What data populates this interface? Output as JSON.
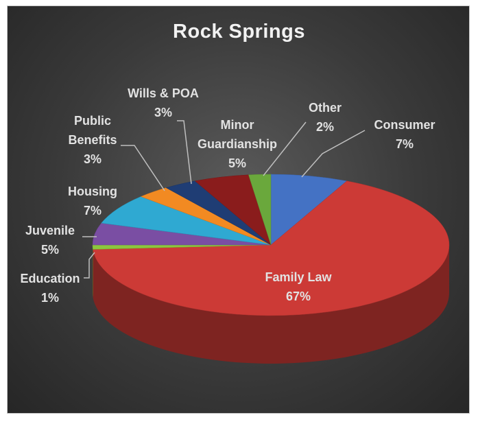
{
  "chart_data": {
    "type": "pie",
    "title": "Rock Springs",
    "categories": [
      "Consumer",
      "Family Law",
      "Education",
      "Juvenile",
      "Housing",
      "Public Benefits",
      "Wills & POA",
      "Minor Guardianship",
      "Other"
    ],
    "values": [
      7,
      67,
      1,
      5,
      7,
      3,
      3,
      5,
      2
    ],
    "value_labels": [
      "7%",
      "67%",
      "1%",
      "5%",
      "7%",
      "3%",
      "3%",
      "5%",
      "2%"
    ],
    "colors": [
      "#4472c4",
      "#cc3a36",
      "#8cc63e",
      "#7a4ea3",
      "#2fa9d2",
      "#f28a22",
      "#1f3d74",
      "#8a1c1c",
      "#6aa83c"
    ]
  }
}
